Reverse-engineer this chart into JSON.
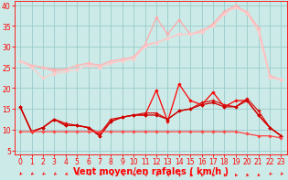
{
  "x": [
    0,
    1,
    2,
    3,
    4,
    5,
    6,
    7,
    8,
    9,
    10,
    11,
    12,
    13,
    14,
    15,
    16,
    17,
    18,
    19,
    20,
    21,
    22,
    23
  ],
  "series": [
    {
      "name": "upper1",
      "color": "#ffaaaa",
      "linewidth": 0.9,
      "marker": "D",
      "markersize": 1.8,
      "y": [
        26.5,
        25.5,
        25.0,
        24.5,
        24.5,
        25.5,
        26.0,
        25.5,
        26.5,
        27.0,
        27.5,
        30.5,
        37.0,
        33.0,
        36.5,
        33.0,
        33.5,
        35.5,
        38.5,
        40.0,
        38.0,
        34.5,
        23.0,
        22.0
      ]
    },
    {
      "name": "upper2",
      "color": "#ffbbbb",
      "linewidth": 0.9,
      "marker": "D",
      "markersize": 1.8,
      "y": [
        26.5,
        25.5,
        25.0,
        24.0,
        24.5,
        25.5,
        26.0,
        25.5,
        26.5,
        27.0,
        27.5,
        30.5,
        31.0,
        32.0,
        33.0,
        33.0,
        34.0,
        35.0,
        38.0,
        39.5,
        38.5,
        34.5,
        23.0,
        22.0
      ]
    },
    {
      "name": "upper3",
      "color": "#ffcccc",
      "linewidth": 0.9,
      "marker": "D",
      "markersize": 1.8,
      "y": [
        26.5,
        25.0,
        22.5,
        23.5,
        24.0,
        24.5,
        25.5,
        25.0,
        26.0,
        26.5,
        27.0,
        30.0,
        31.0,
        32.0,
        33.0,
        33.0,
        33.5,
        35.0,
        38.0,
        39.5,
        38.0,
        33.5,
        22.5,
        22.0
      ]
    },
    {
      "name": "lower_spiky",
      "color": "#ff0000",
      "linewidth": 0.9,
      "marker": "D",
      "markersize": 1.8,
      "y": [
        15.5,
        9.5,
        10.5,
        12.5,
        11.0,
        11.0,
        10.5,
        8.5,
        12.0,
        13.0,
        13.5,
        13.5,
        19.5,
        12.0,
        21.0,
        17.0,
        16.0,
        19.0,
        15.5,
        17.0,
        17.0,
        13.5,
        10.5,
        8.5
      ]
    },
    {
      "name": "lower_mid1",
      "color": "#dd1111",
      "linewidth": 0.9,
      "marker": "D",
      "markersize": 1.8,
      "y": [
        15.5,
        9.5,
        10.5,
        12.5,
        11.5,
        11.0,
        10.5,
        9.0,
        12.5,
        13.0,
        13.5,
        14.0,
        14.0,
        12.5,
        14.5,
        15.0,
        16.5,
        17.0,
        16.0,
        15.5,
        17.5,
        14.5,
        10.5,
        8.5
      ]
    },
    {
      "name": "lower_mid2",
      "color": "#cc0000",
      "linewidth": 0.9,
      "marker": "D",
      "markersize": 1.8,
      "y": [
        15.5,
        9.5,
        10.5,
        12.5,
        11.0,
        11.0,
        10.5,
        8.5,
        12.0,
        13.0,
        13.5,
        13.5,
        13.5,
        12.5,
        14.5,
        15.0,
        16.0,
        16.5,
        15.5,
        15.5,
        17.0,
        13.5,
        10.5,
        8.5
      ]
    },
    {
      "name": "lower_flat",
      "color": "#ff4444",
      "linewidth": 0.9,
      "marker": "D",
      "markersize": 1.8,
      "y": [
        9.5,
        9.5,
        9.5,
        9.5,
        9.5,
        9.5,
        9.5,
        9.5,
        9.5,
        9.5,
        9.5,
        9.5,
        9.5,
        9.5,
        9.5,
        9.5,
        9.5,
        9.5,
        9.5,
        9.5,
        9.0,
        8.5,
        8.5,
        8.0
      ]
    }
  ],
  "arrows": {
    "angles_deg": [
      225,
      215,
      210,
      205,
      200,
      195,
      190,
      185,
      175,
      170,
      165,
      160,
      150,
      145,
      140,
      135,
      130,
      125,
      120,
      115,
      110,
      105,
      215,
      220
    ]
  },
  "xlabel": "Vent moyen/en rafales ( km/h )",
  "xlim": [
    -0.5,
    23.5
  ],
  "ylim": [
    4,
    41
  ],
  "yticks": [
    5,
    10,
    15,
    20,
    25,
    30,
    35,
    40
  ],
  "xticks": [
    0,
    1,
    2,
    3,
    4,
    5,
    6,
    7,
    8,
    9,
    10,
    11,
    12,
    13,
    14,
    15,
    16,
    17,
    18,
    19,
    20,
    21,
    22,
    23
  ],
  "bg_color": "#cceae7",
  "grid_color": "#99cccc",
  "tick_color": "#ff0000",
  "label_color": "#ff0000",
  "xlabel_fontsize": 7,
  "tick_fontsize": 5.5,
  "arrow_color": "#ff0000"
}
